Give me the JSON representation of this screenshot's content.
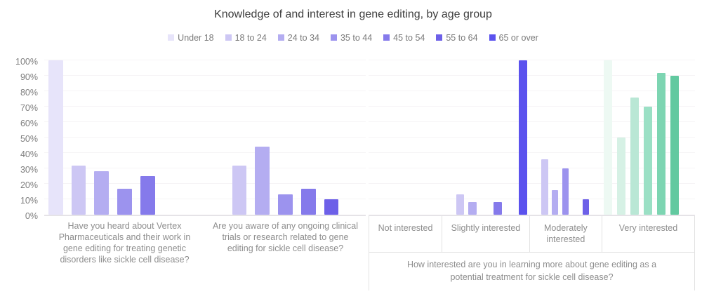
{
  "title": "Knowledge of and interest in gene editing, by age group",
  "legend": {
    "position": "top",
    "items": [
      "Under 18",
      "18 to 24",
      "24 to 34",
      "35 to 44",
      "45 to 54",
      "55 to 64",
      "65 or over"
    ]
  },
  "colors": {
    "age_purple": [
      "#e7e4fa",
      "#cdc7f4",
      "#b4adf1",
      "#9c93ee",
      "#857aeb",
      "#6d60e8",
      "#5b52ee"
    ],
    "age_green": [
      "#edf9f3",
      "#d6f1e5",
      "#b9e7d5",
      "#9be0c5",
      "#7dd5b2",
      "#62c9a0"
    ],
    "gridline": "#f6f4f6",
    "axis_line": "#e5e3e7",
    "table_border": "#e2e2e2",
    "title_text": "#3d3d3d",
    "label_text": "#8e8e8e"
  },
  "y_axis": {
    "ticks": [
      "100%",
      "90%",
      "80%",
      "70%",
      "60%",
      "50%",
      "40%",
      "30%",
      "20%",
      "10%",
      "0%"
    ],
    "min": 0,
    "max": 100
  },
  "chart_data": [
    {
      "type": "bar",
      "panel": "knowledge",
      "grid": true,
      "ylim": [
        0,
        100
      ],
      "ylabel": "",
      "categories": [
        "Have you heard about Vertex Pharmaceuticals and their work in gene editing for treating genetic disorders like sickle cell disease?",
        "Are you aware of any ongoing clinical trials or research related to gene editing for sickle cell disease?"
      ],
      "series": [
        {
          "name": "Under 18",
          "values": [
            100,
            null
          ]
        },
        {
          "name": "18 to 24",
          "values": [
            32,
            32
          ]
        },
        {
          "name": "24 to 34",
          "values": [
            28,
            44
          ]
        },
        {
          "name": "35 to 44",
          "values": [
            17,
            13
          ]
        },
        {
          "name": "45 to 54",
          "values": [
            25,
            17
          ]
        },
        {
          "name": "55 to 64",
          "values": [
            null,
            10
          ]
        },
        {
          "name": "65 or over",
          "values": [
            null,
            null
          ]
        }
      ]
    },
    {
      "type": "bar",
      "panel": "interest",
      "grid": true,
      "ylim": [
        0,
        100
      ],
      "xlabel": "How interested are you in learning more about gene editing as a potential treatment for sickle cell disease?",
      "categories": [
        "Not interested",
        "Slightly interested",
        "Moderately interested",
        "Very interested"
      ],
      "category_flex": [
        105,
        128,
        104,
        136
      ],
      "green_category_index": 3,
      "series": [
        {
          "name": "Under 18",
          "values": [
            null,
            null,
            null,
            100
          ]
        },
        {
          "name": "18 to 24",
          "values": [
            null,
            13,
            36,
            50
          ]
        },
        {
          "name": "24 to 34",
          "values": [
            null,
            8,
            16,
            76
          ]
        },
        {
          "name": "35 to 44",
          "values": [
            null,
            null,
            30,
            70
          ]
        },
        {
          "name": "45 to 54",
          "values": [
            null,
            8,
            null,
            92
          ]
        },
        {
          "name": "55 to 64",
          "values": [
            null,
            null,
            10,
            90
          ]
        },
        {
          "name": "65 or over",
          "values": [
            null,
            100,
            null,
            null
          ]
        }
      ]
    }
  ]
}
